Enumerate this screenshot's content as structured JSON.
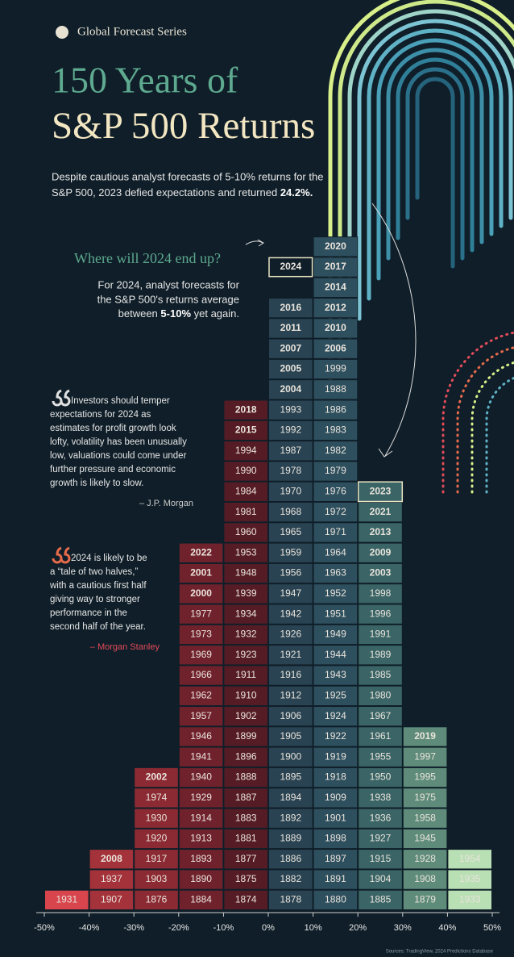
{
  "brand": "Global Forecast Series",
  "title_line1": "150 Years of",
  "title_line2": "S&P 500 Returns",
  "intro": [
    "Despite cautious analyst forecasts of 5-10% returns for the",
    "S&P 500, 2023 defied expectations and returned"
  ],
  "intro_emphasis": "24.2%.",
  "question": "Where will 2024 end up?",
  "forecast_lines": [
    "For 2024, analyst forecasts for",
    "the S&P 500's returns average",
    "between"
  ],
  "forecast_emphasis": "5-10%",
  "forecast_tail": "yet again.",
  "quotes": [
    {
      "lines": [
        "Investors should temper",
        "expectations for 2024 as",
        "estimates for profit growth look",
        "lofty, volatility has been unusually",
        "low, valuations could come under",
        "further pressure and economic",
        "growth is likely to slow."
      ],
      "source": "– J.P. Morgan"
    },
    {
      "lines": [
        "2024 is likely to be",
        "a “tale of two halves,”",
        "with a cautious first half",
        "giving way to stronger",
        "performance in the",
        "second half of the year."
      ],
      "source": "– Morgan Stanley"
    }
  ],
  "source_note": "Sources: TradingView, 2024 Predictions Database",
  "chart_data": {
    "type": "histogram",
    "bins": [
      -50,
      -40,
      -30,
      -20,
      -10,
      0,
      10,
      20,
      30,
      40,
      50
    ],
    "xlim": [
      -50,
      50
    ],
    "xticks": [
      {
        "value": -50,
        "label": "-50%"
      },
      {
        "value": -40,
        "label": "-40%"
      },
      {
        "value": -30,
        "label": "-30%"
      },
      {
        "value": -20,
        "label": "-20%"
      },
      {
        "value": -10,
        "label": "-10%"
      },
      {
        "value": 0,
        "label": "0%"
      },
      {
        "value": 10,
        "label": "10%"
      },
      {
        "value": 20,
        "label": "20%"
      },
      {
        "value": 30,
        "label": "30%"
      },
      {
        "value": 40,
        "label": "40%"
      },
      {
        "value": 50,
        "label": "50%"
      }
    ],
    "colors": [
      "#d8454c",
      "#a4323a",
      "#8c2a33",
      "#70222c",
      "#561c25",
      "#294352",
      "#2e4f5e",
      "#3a6465",
      "#5e8b7a",
      "#b9dfb4"
    ],
    "columns": [
      [
        "1931"
      ],
      [
        "1907",
        "1937",
        "2008"
      ],
      [
        "1876",
        "1903",
        "1917",
        "1920",
        "1930",
        "1974",
        "2002"
      ],
      [
        "1884",
        "1890",
        "1893",
        "1913",
        "1914",
        "1929",
        "1940",
        "1941",
        "1946",
        "1957",
        "1962",
        "1966",
        "1969",
        "1973",
        "1977",
        "2000",
        "2001",
        "2022"
      ],
      [
        "1874",
        "1875",
        "1877",
        "1881",
        "1883",
        "1887",
        "1888",
        "1896",
        "1899",
        "1902",
        "1910",
        "1911",
        "1923",
        "1932",
        "1934",
        "1939",
        "1948",
        "1953",
        "1960",
        "1981",
        "1984",
        "1990",
        "1994",
        "2015",
        "2018"
      ],
      [
        "1878",
        "1882",
        "1886",
        "1889",
        "1892",
        "1894",
        "1895",
        "1900",
        "1905",
        "1906",
        "1912",
        "1916",
        "1921",
        "1926",
        "1942",
        "1947",
        "1956",
        "1959",
        "1965",
        "1968",
        "1970",
        "1978",
        "1987",
        "1992",
        "1993",
        "2004",
        "2005",
        "2007",
        "2011",
        "2016"
      ],
      [
        "1880",
        "1891",
        "1897",
        "1898",
        "1901",
        "1909",
        "1918",
        "1919",
        "1922",
        "1924",
        "1925",
        "1943",
        "1944",
        "1949",
        "1951",
        "1952",
        "1963",
        "1964",
        "1971",
        "1972",
        "1976",
        "1979",
        "1982",
        "1983",
        "1986",
        "1988",
        "1999",
        "2006",
        "2010",
        "2012",
        "2014",
        "2017",
        "2020"
      ],
      [
        "1885",
        "1904",
        "1915",
        "1927",
        "1936",
        "1938",
        "1950",
        "1955",
        "1961",
        "1967",
        "1980",
        "1985",
        "1989",
        "1991",
        "1996",
        "1998",
        "2003",
        "2009",
        "2013",
        "2021",
        "2023"
      ],
      [
        "1879",
        "1908",
        "1928",
        "1945",
        "1958",
        "1975",
        "1995",
        "1997",
        "2019"
      ],
      [
        "1933",
        "1935",
        "1954"
      ]
    ],
    "forecast": {
      "label": "2024",
      "bin_index": 5
    }
  }
}
